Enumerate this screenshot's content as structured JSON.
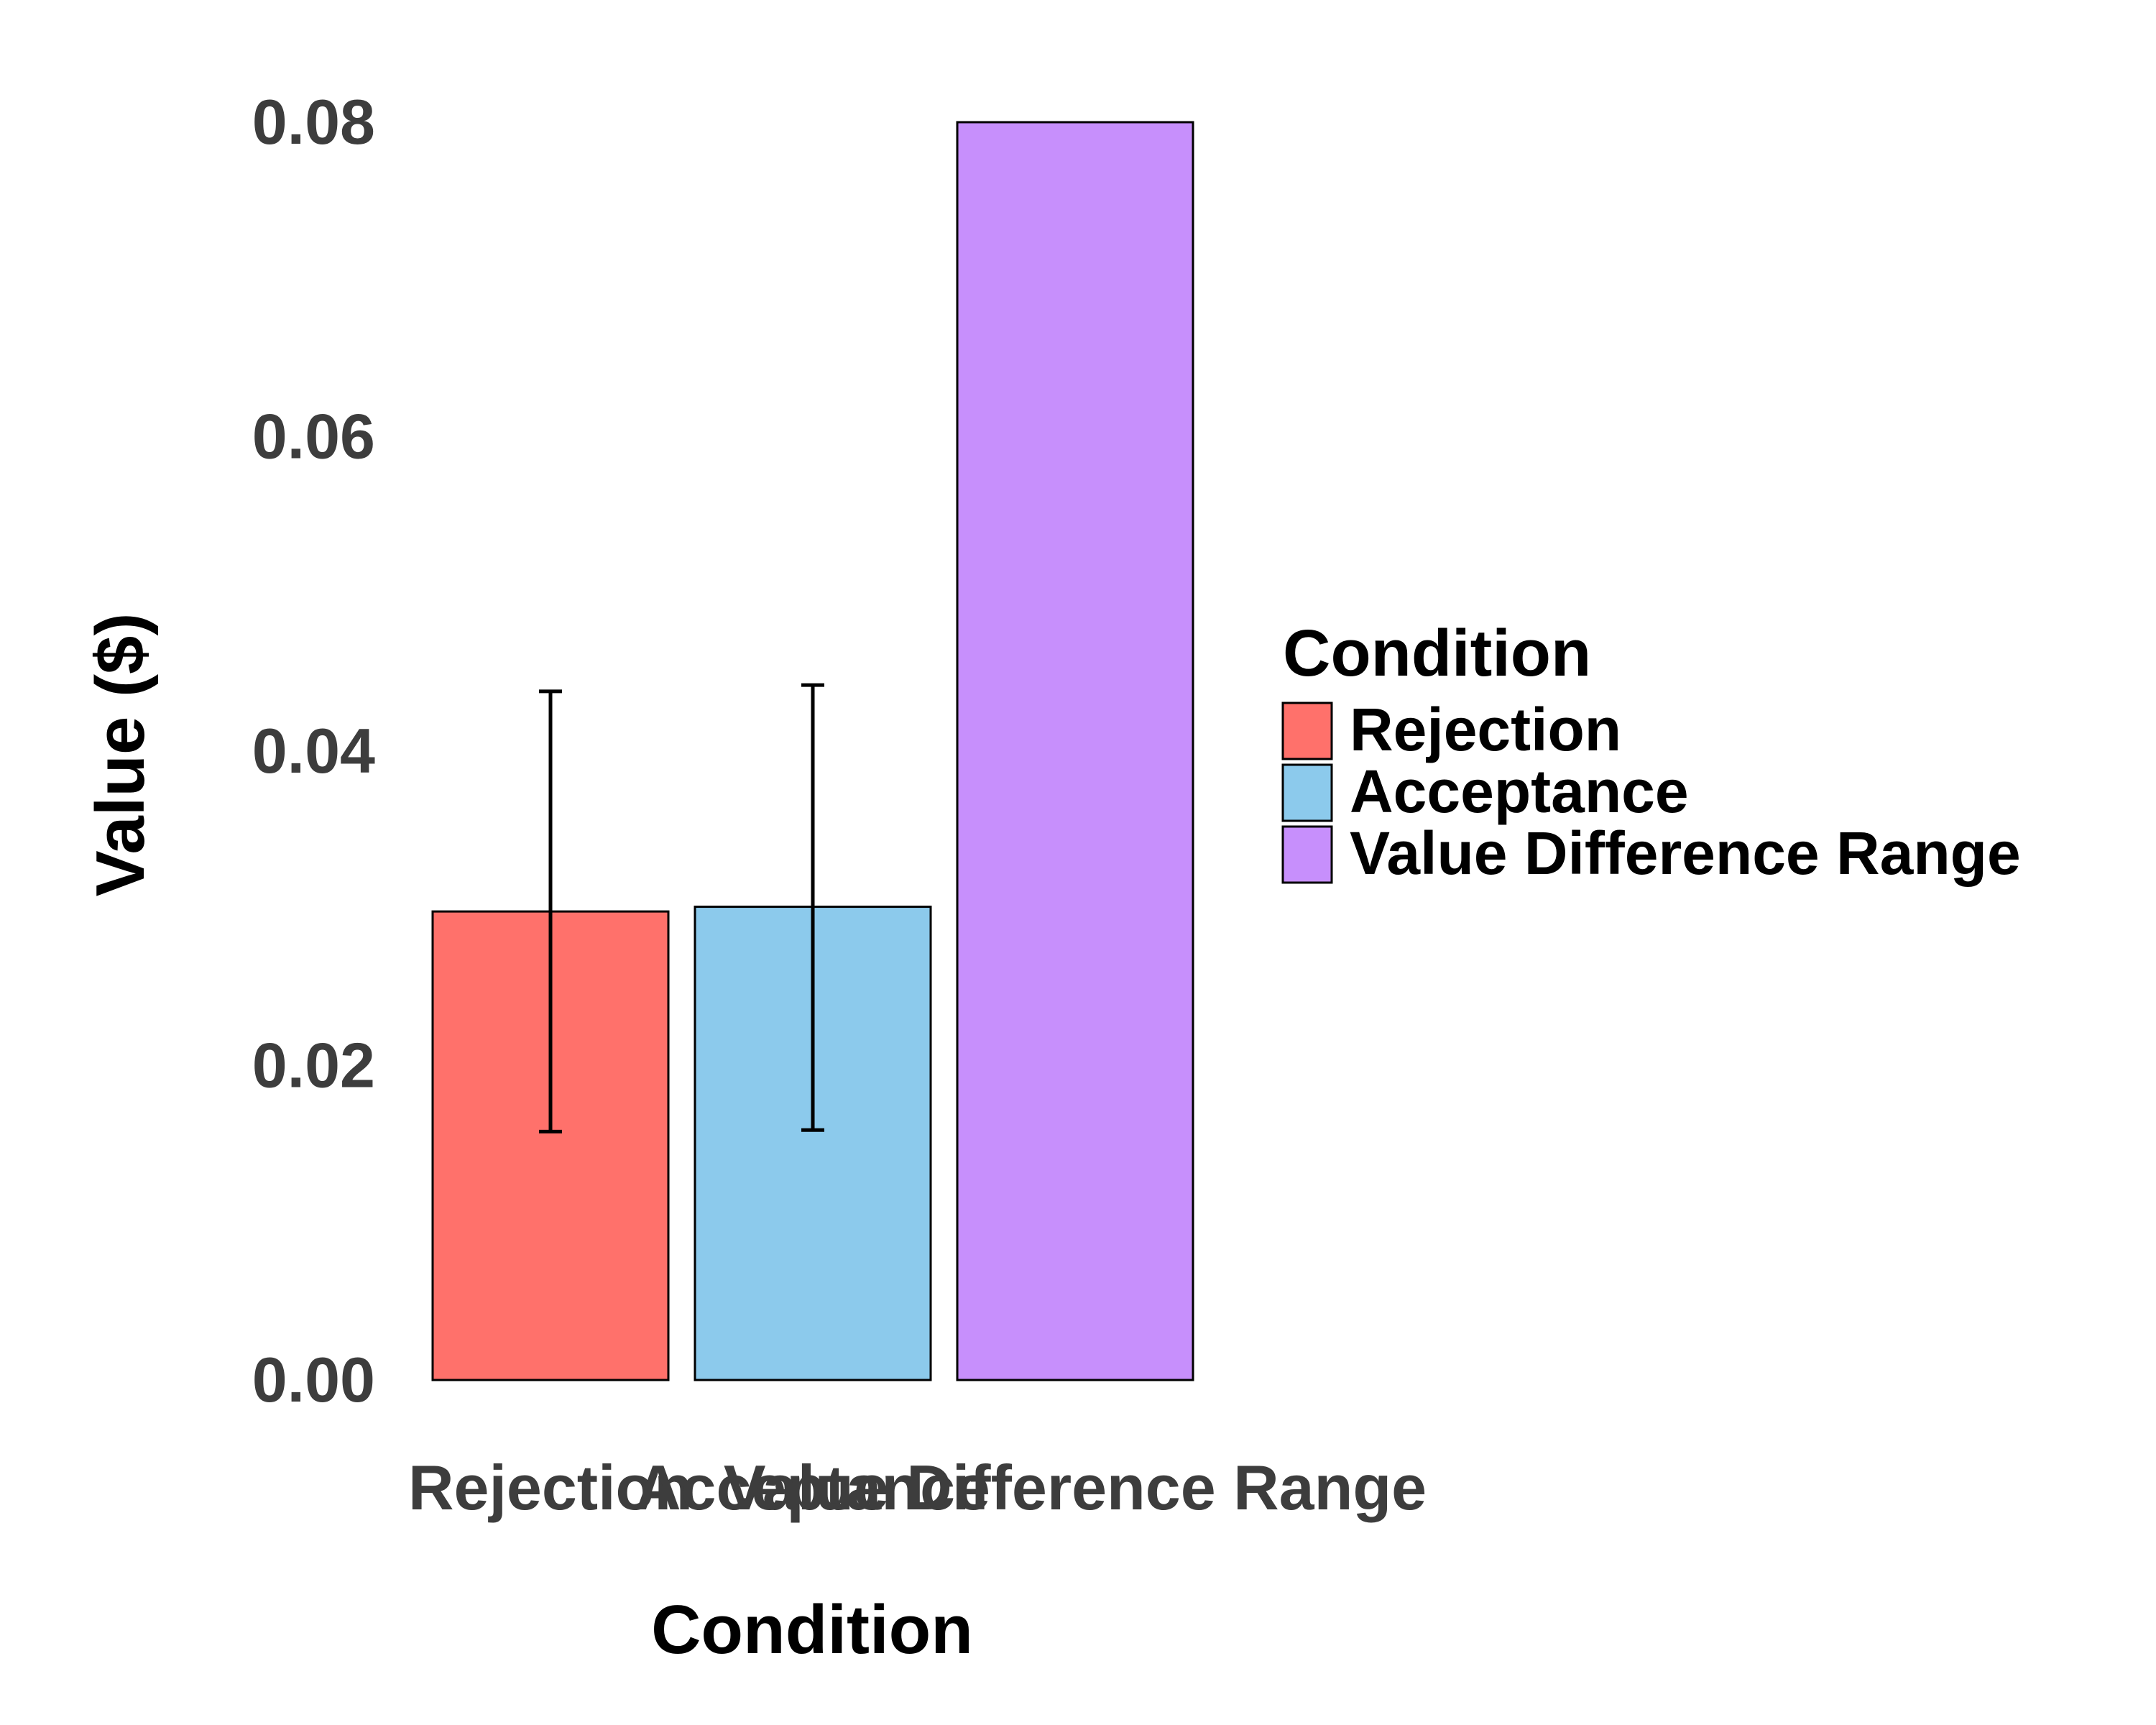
{
  "chart_data": {
    "type": "bar",
    "title": "",
    "xlabel": "Condition",
    "ylabel": "Value ($)",
    "categories": [
      "Rejection",
      "Acceptance",
      "Value Difference Range"
    ],
    "values": [
      0.0298,
      0.0301,
      0.08
    ],
    "error_bars": [
      {
        "low": 0.0158,
        "high": 0.0438
      },
      {
        "low": 0.0159,
        "high": 0.0442
      },
      null
    ],
    "colors": [
      "#ff716b",
      "#8ccaec",
      "#c78ffc"
    ],
    "ylim": [
      0,
      0.08
    ],
    "yticks": [
      "0.00",
      "0.02",
      "0.04",
      "0.06",
      "0.08"
    ],
    "ytick_values": [
      0,
      0.02,
      0.04,
      0.06,
      0.08
    ],
    "grid": false,
    "legend": {
      "title": "Condition",
      "position": "right",
      "entries": [
        "Rejection",
        "Acceptance",
        "Value Difference Range"
      ]
    }
  }
}
